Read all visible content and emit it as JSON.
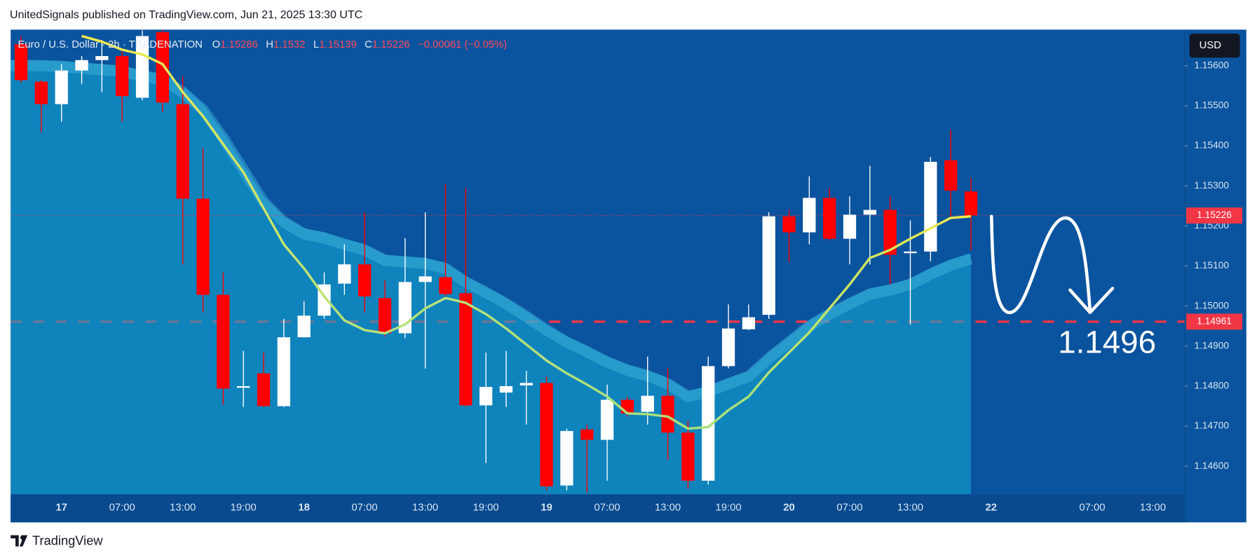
{
  "header": "UnitedSignals published on TradingView.com, Jun 21, 2025 13:30 UTC",
  "logo": "TradingView",
  "chart_data": {
    "type": "candlestick",
    "title": "Euro / U.S. Dollar · 2h · TRADENATION",
    "legend_labels": [
      "O",
      "H",
      "L",
      "C"
    ],
    "change_label": "−0.00061 (−0.05%)",
    "currency": "USD",
    "up_color": "#ffffff",
    "down_color": "#ff0000",
    "categories": [
      null,
      null,
      "17",
      null,
      null,
      "07:00",
      null,
      null,
      "13:00",
      null,
      null,
      "19:00",
      null,
      null,
      "18",
      null,
      null,
      "07:00",
      null,
      null,
      "13:00",
      null,
      null,
      "19:00",
      null,
      null,
      "19",
      null,
      null,
      "07:00",
      null,
      null,
      "13:00",
      null,
      null,
      "19:00",
      null,
      null,
      "20",
      null,
      null,
      "07:00",
      null,
      null,
      "13:00",
      null,
      null,
      null
    ],
    "future_categories": [
      "22",
      null,
      null,
      null,
      null,
      "07:00",
      null,
      null,
      "13:00",
      null
    ],
    "open": [
      1.15654,
      1.1556,
      1.15504,
      1.15588,
      1.15614,
      1.15624,
      1.1552,
      1.15684,
      1.15504,
      1.15268,
      1.15028,
      1.14796,
      1.14832,
      1.1475,
      1.14922,
      1.14976,
      1.15056,
      1.15104,
      1.1502,
      1.14932,
      1.1506,
      1.15072,
      1.15032,
      1.14752,
      1.14784,
      1.14802,
      1.14808,
      1.14552,
      1.14692,
      1.14666,
      1.14766,
      1.14736,
      1.14776,
      1.14684,
      1.14564,
      1.1485,
      1.14942,
      1.14978,
      1.15224,
      1.15184,
      1.1527,
      1.15168,
      1.15228,
      1.1524,
      1.15132,
      1.15136,
      1.15364,
      1.15286
    ],
    "high": [
      1.15674,
      1.15564,
      1.15604,
      1.15624,
      1.15664,
      1.1564,
      1.15688,
      1.15688,
      1.15574,
      1.15394,
      1.15084,
      1.14888,
      1.14884,
      1.14968,
      1.15012,
      1.15084,
      1.15154,
      1.15234,
      1.15064,
      1.1517,
      1.15234,
      1.15304,
      1.15294,
      1.14884,
      1.14888,
      1.14838,
      1.14824,
      1.14694,
      1.14704,
      1.14804,
      1.14774,
      1.14874,
      1.14844,
      1.14714,
      1.14874,
      1.15004,
      1.15004,
      1.15234,
      1.1524,
      1.15324,
      1.15294,
      1.15274,
      1.1535,
      1.15274,
      1.15214,
      1.15372,
      1.1544,
      1.1532
    ],
    "low": [
      1.15558,
      1.15434,
      1.1546,
      1.15554,
      1.15534,
      1.1546,
      1.15514,
      1.15484,
      1.15104,
      1.14984,
      1.14754,
      1.14748,
      1.14748,
      1.14748,
      1.14922,
      1.14968,
      1.15028,
      1.14984,
      1.14924,
      1.1492,
      1.14844,
      1.15024,
      1.14748,
      1.14608,
      1.14748,
      1.14704,
      1.1454,
      1.1454,
      1.14534,
      1.14564,
      1.14724,
      1.14704,
      1.14616,
      1.14544,
      1.14554,
      1.14844,
      1.1494,
      1.14968,
      1.1511,
      1.15154,
      1.15164,
      1.15104,
      1.15104,
      1.15054,
      1.14954,
      1.15112,
      1.15224,
      1.15139
    ],
    "close": [
      1.15564,
      1.15504,
      1.15588,
      1.15614,
      1.15624,
      1.15524,
      1.15674,
      1.15508,
      1.15268,
      1.15028,
      1.14794,
      1.148,
      1.1475,
      1.14922,
      1.14976,
      1.15054,
      1.15104,
      1.15024,
      1.14932,
      1.1506,
      1.15074,
      1.1503,
      1.14752,
      1.14798,
      1.148,
      1.14808,
      1.1455,
      1.14688,
      1.14666,
      1.14766,
      1.14732,
      1.14776,
      1.14684,
      1.14564,
      1.1485,
      1.14944,
      1.14972,
      1.15224,
      1.15184,
      1.1527,
      1.15168,
      1.15228,
      1.1524,
      1.15128,
      1.15136,
      1.1536,
      1.15288,
      1.15226
    ],
    "ma": {
      "values": [
        null,
        null,
        null,
        1.15674,
        1.1566,
        1.1564,
        1.15628,
        1.15604,
        1.15534,
        1.15474,
        1.15404,
        1.15334,
        1.15244,
        1.15154,
        1.15094,
        1.15024,
        1.14964,
        1.1494,
        1.14932,
        1.14954,
        1.14994,
        1.1502,
        1.15008,
        1.1498,
        1.14944,
        1.14904,
        1.14864,
        1.14832,
        1.14804,
        1.14774,
        1.14732,
        1.1473,
        1.14724,
        1.14694,
        1.14698,
        1.1474,
        1.14774,
        1.14834,
        1.14884,
        1.14934,
        1.14994,
        1.15054,
        1.1512,
        1.1514,
        1.15168,
        1.15194,
        1.1522,
        1.15224
      ]
    },
    "band": {
      "color": "#13a3d0",
      "values": [
        1.15614,
        1.15614,
        1.15612,
        1.15608,
        1.15604,
        1.156,
        1.15588,
        1.1558,
        1.15548,
        1.15504,
        1.15434,
        1.15354,
        1.15274,
        1.15224,
        1.15194,
        1.15184,
        1.15168,
        1.15154,
        1.15128,
        1.15124,
        1.1512,
        1.15108,
        1.15074,
        1.15048,
        1.1502,
        1.14988,
        1.14954,
        1.14924,
        1.149,
        1.14874,
        1.14854,
        1.1484,
        1.1482,
        1.14788,
        1.148,
        1.1482,
        1.14838,
        1.14884,
        1.14924,
        1.14964,
        1.14994,
        1.1502,
        1.15044,
        1.15054,
        1.15068,
        1.15094,
        1.15116,
        1.15132
      ]
    },
    "hline": {
      "value": 1.14961,
      "color": "#f23645"
    },
    "hline_label": {
      "value": 1.14961,
      "label": "1.14961"
    },
    "annotation": "1.1496",
    "ylim": [
      1.1453,
      1.1569
    ],
    "yticks": [
      {
        "value": 1.146,
        "label": "1.14600"
      },
      {
        "value": 1.147,
        "label": "1.14700"
      },
      {
        "value": 1.148,
        "label": "1.14800"
      },
      {
        "value": 1.149,
        "label": "1.14900"
      },
      {
        "value": 1.15,
        "label": "1.15000"
      },
      {
        "value": 1.151,
        "label": "1.15100"
      },
      {
        "value": 1.152,
        "label": "1.15200"
      },
      {
        "value": 1.153,
        "label": "1.15300"
      },
      {
        "value": 1.154,
        "label": "1.15400"
      },
      {
        "value": 1.155,
        "label": "1.15500"
      },
      {
        "value": 1.156,
        "label": "1.15600"
      }
    ]
  }
}
